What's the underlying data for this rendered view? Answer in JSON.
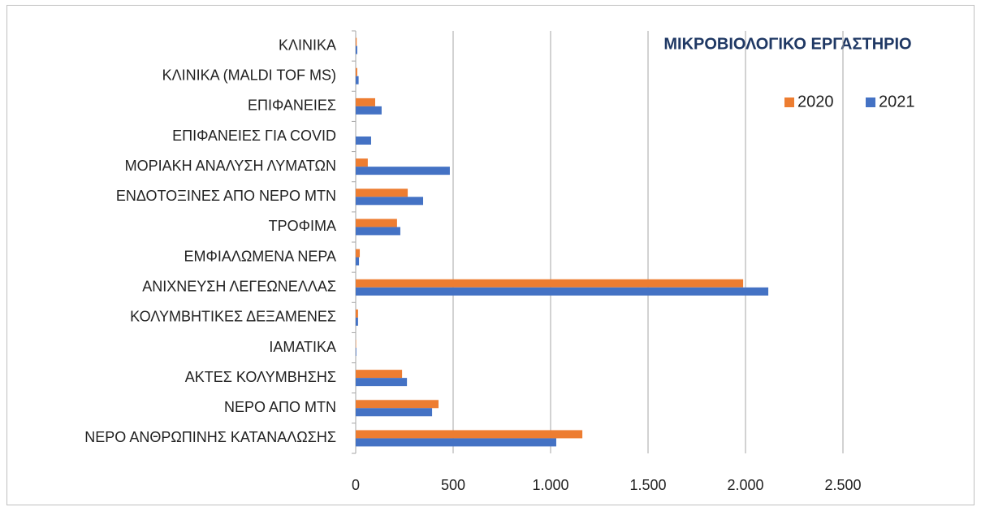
{
  "chart_data": {
    "type": "hbar",
    "title": "ΜΙΚΡΟΒΙΟΛΟΓΙΚΟ ΕΡΓΑΣΤΗΡΙΟ",
    "categories": [
      "ΚΛΙΝΙΚΑ",
      "ΚΛΙΝΙΚΑ  (MALDI TOF MS)",
      "ΕΠΙΦΑΝΕΙΕΣ",
      "ΕΠΙΦΑΝΕΙΕΣ ΓΙΑ COVID",
      "ΜΟΡΙΑΚΗ ΑΝΑΛΥΣΗ ΛΥΜΑΤΩΝ",
      "ΕΝΔΟΤΟΞΙΝΕΣ ΑΠΟ ΝΕΡΟ ΜΤΝ",
      "ΤΡΟΦΙΜΑ",
      "ΕΜΦΙΑΛΩΜΕΝΑ ΝΕΡΑ",
      "ΑΝΙΧΝΕΥΣΗ ΛΕΓΕΩΝΕΛΛΑΣ",
      "ΚΟΛΥΜΒΗΤΙΚΕΣ ΔΕΞΑΜΕΝΕΣ",
      "ΙΑΜΑΤΙΚΑ ",
      "ΑΚΤΕΣ ΚΟΛΥΜΒΗΣΗΣ",
      "ΝΕΡΟ ΑΠΟ ΜΤΝ",
      "ΝΕΡΟ ΑΝΘΡΩΠΙΝΗΣ ΚΑΤΑΝΑΛΩΣΗΣ"
    ],
    "series": [
      {
        "name": "2020",
        "color": "#ed7d31",
        "values": [
          5,
          8,
          100,
          0,
          62,
          267,
          212,
          21,
          1988,
          12,
          2,
          238,
          425,
          1163
        ]
      },
      {
        "name": "2021",
        "color": "#4472c4",
        "values": [
          8,
          15,
          133,
          79,
          483,
          346,
          229,
          17,
          2117,
          12,
          3,
          263,
          392,
          1029
        ]
      }
    ],
    "xlim": [
      0,
      2500
    ],
    "xticks": [
      0,
      500,
      {
        "value": 1000,
        "label": "1.000"
      },
      {
        "value": 1500,
        "label": "1.500"
      },
      {
        "value": 2000,
        "label": "2.000"
      },
      {
        "value": 2500,
        "label": "2.500"
      }
    ],
    "grid": true
  }
}
